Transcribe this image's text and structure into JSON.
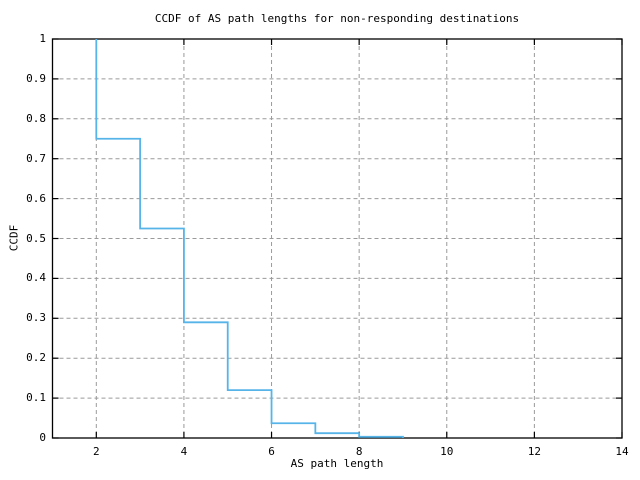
{
  "chart_data": {
    "type": "line",
    "subtype": "step",
    "title": "CCDF of AS path lengths for non-responding destinations",
    "xlabel": "AS path length",
    "ylabel": "CCDF",
    "xlim": [
      1,
      14
    ],
    "ylim": [
      0,
      1
    ],
    "grid": true,
    "legend": "none",
    "x_tick_values": [
      2,
      4,
      6,
      8,
      10,
      12,
      14
    ],
    "x_tick_labels": [
      "2",
      "4",
      "6",
      "8",
      "10",
      "12",
      "14"
    ],
    "y_tick_values": [
      0,
      0.1,
      0.2,
      0.3,
      0.4,
      0.5,
      0.6,
      0.7,
      0.8,
      0.9,
      1
    ],
    "y_tick_labels": [
      "0",
      "0.1",
      "0.2",
      "0.3",
      "0.4",
      "0.5",
      "0.6",
      "0.7",
      "0.8",
      "0.9",
      "1"
    ],
    "grid_x_values": [
      2,
      4,
      6,
      8,
      10,
      12
    ],
    "grid_y_values": [
      0.1,
      0.2,
      0.3,
      0.4,
      0.5,
      0.6,
      0.7,
      0.8,
      0.9
    ],
    "start_point": {
      "x": 2,
      "ccdf": 1.0
    },
    "steps": [
      {
        "x_from": 2,
        "x_to": 3,
        "ccdf": 0.75
      },
      {
        "x_from": 3,
        "x_to": 4,
        "ccdf": 0.525
      },
      {
        "x_from": 4,
        "x_to": 5,
        "ccdf": 0.29
      },
      {
        "x_from": 5,
        "x_to": 6,
        "ccdf": 0.12
      },
      {
        "x_from": 6,
        "x_to": 7,
        "ccdf": 0.037
      },
      {
        "x_from": 7,
        "x_to": 8,
        "ccdf": 0.012
      },
      {
        "x_from": 8,
        "x_to": 9,
        "ccdf": 0.003
      },
      {
        "x_from": 9,
        "x_to": 9,
        "ccdf": 0.0
      }
    ],
    "colors": {
      "line": "#56b4e9",
      "grid": "#9a9a9a",
      "axis": "#000000",
      "background": "#ffffff",
      "text": "#000000"
    }
  }
}
